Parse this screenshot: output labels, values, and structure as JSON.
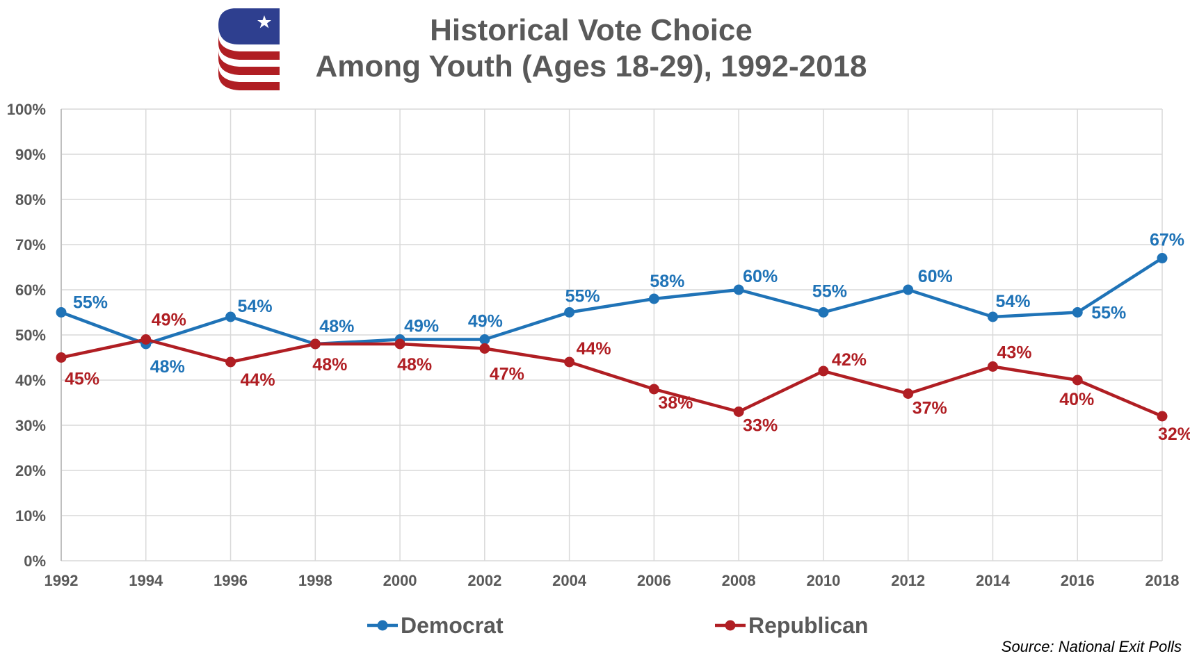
{
  "chart_data": {
    "type": "line",
    "title": [
      "Historical Vote Choice",
      "Among Youth (Ages 18-29), 1992-2018"
    ],
    "x": [
      "1992",
      "1994",
      "1996",
      "1998",
      "2000",
      "2002",
      "2004",
      "2006",
      "2008",
      "2010",
      "2012",
      "2014",
      "2016",
      "2018"
    ],
    "series": [
      {
        "name": "Democrat",
        "color": "#1F73B7",
        "values": [
          55,
          48,
          54,
          48,
          49,
          49,
          55,
          58,
          60,
          55,
          60,
          54,
          55,
          67
        ],
        "labels": [
          "55%",
          "48%",
          "54%",
          "48%",
          "49%",
          "49%",
          "55%",
          "58%",
          "60%",
          "55%",
          "60%",
          "54%",
          "55%",
          "67%"
        ]
      },
      {
        "name": "Republican",
        "color": "#B01E23",
        "values": [
          45,
          49,
          44,
          48,
          48,
          47,
          44,
          38,
          33,
          42,
          37,
          43,
          40,
          32
        ],
        "labels": [
          "45%",
          "49%",
          "44%",
          "48%",
          "48%",
          "47%",
          "44%",
          "38%",
          "33%",
          "42%",
          "37%",
          "43%",
          "40%",
          "32%"
        ]
      }
    ],
    "y_ticks": [
      "0%",
      "10%",
      "20%",
      "30%",
      "40%",
      "50%",
      "60%",
      "70%",
      "80%",
      "90%",
      "100%"
    ],
    "ylim": [
      0,
      100
    ],
    "grid": true,
    "legend_position": "bottom"
  },
  "source_note": "Source: National Exit Polls",
  "colors": {
    "gridline": "#D9D9D9",
    "axis_text": "#595959",
    "logo_blue": "#2E3F8F",
    "logo_red": "#B01E23"
  }
}
